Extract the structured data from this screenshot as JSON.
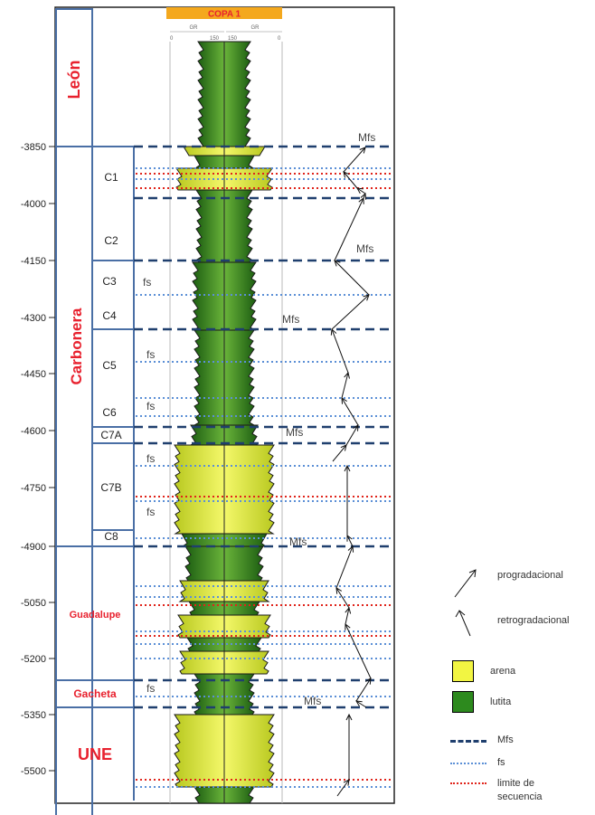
{
  "well_title": "COPA 1",
  "track_header": {
    "left": {
      "name": "GR",
      "scale_min": "0",
      "scale_max": "150"
    },
    "right": {
      "name": "GR",
      "scale_min": "150",
      "scale_max": "0"
    }
  },
  "depth_ticks": [
    "-3850",
    "-4000",
    "-4150",
    "-4300",
    "-4450",
    "-4600",
    "-4750",
    "-4900",
    "-5050",
    "-5200",
    "-5350",
    "-5500"
  ],
  "formations": [
    "León",
    "Carbonera",
    "Guadalupe",
    "Gacheta",
    "UNE"
  ],
  "units": [
    "C1",
    "C2",
    "C3",
    "C4",
    "C5",
    "C6",
    "C7A",
    "C7B",
    "C8"
  ],
  "surface_labels": {
    "mfs": [
      "Mfs",
      "Mfs",
      "Mfs",
      "Mfs",
      "Mfs",
      "Mfs"
    ],
    "fs": [
      "fs",
      "fs",
      "fs",
      "fs",
      "fs",
      "fs"
    ]
  },
  "legend": {
    "progradacional": "progradacional",
    "retrogradacional": "retrogradacional",
    "arena": "arena",
    "lutita": "lutita",
    "mfs": "Mfs",
    "fs": "fs",
    "limite": [
      "limite de",
      "secuencia"
    ]
  },
  "colors": {
    "sand": "#f2f542",
    "shale": "#2d8a1e",
    "mfs_line": "#1f3f6e",
    "fs_line": "#5b8fd6",
    "sequence_boundary": "#e0241b",
    "formation_text": "#e8212e",
    "title_bar": "#f4a81d"
  }
}
